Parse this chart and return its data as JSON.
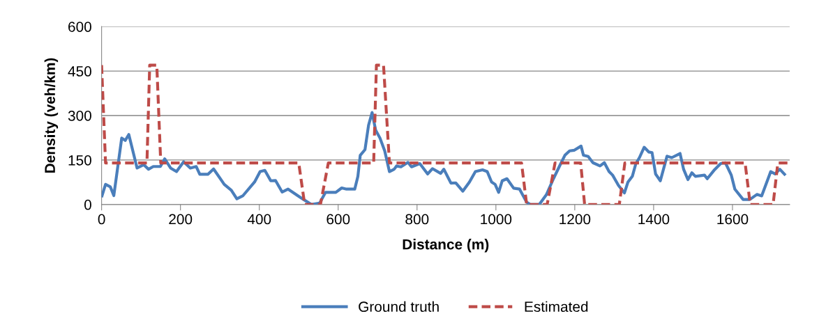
{
  "chart_data": {
    "type": "line",
    "xlabel": "Distance (m)",
    "ylabel": "Density (veh/km)",
    "xlim": [
      0,
      1745
    ],
    "xticks": [
      0,
      200,
      400,
      600,
      800,
      1000,
      1200,
      1400,
      1600
    ],
    "ylim": [
      0,
      600
    ],
    "yticks": [
      0,
      150,
      300,
      450,
      600
    ],
    "grid": "y",
    "legend": "bottom",
    "series": [
      {
        "name": "Ground truth",
        "color": "#4a7ebb",
        "line_style": "solid",
        "x": [
          1,
          10,
          22,
          31,
          51,
          60,
          69,
          90,
          107,
          119,
          131,
          149,
          160,
          175,
          190,
          208,
          225,
          240,
          249,
          270,
          284,
          311,
          329,
          343,
          358,
          388,
          402,
          414,
          429,
          441,
          458,
          473,
          503,
          532,
          553,
          568,
          594,
          609,
          621,
          642,
          650,
          656,
          668,
          677,
          686,
          695,
          706,
          718,
          730,
          742,
          748,
          759,
          777,
          786,
          807,
          827,
          839,
          860,
          868,
          886,
          898,
          916,
          933,
          948,
          966,
          978,
          989,
          998,
          1007,
          1016,
          1028,
          1045,
          1060,
          1078,
          1087,
          1110,
          1128,
          1146,
          1163,
          1175,
          1187,
          1199,
          1216,
          1222,
          1234,
          1246,
          1264,
          1275,
          1287,
          1296,
          1311,
          1326,
          1335,
          1346,
          1355,
          1364,
          1376,
          1388,
          1396,
          1405,
          1417,
          1434,
          1446,
          1467,
          1476,
          1487,
          1497,
          1506,
          1529,
          1536,
          1553,
          1570,
          1582,
          1597,
          1606,
          1627,
          1644,
          1662,
          1674,
          1697,
          1708,
          1720,
          1732
        ],
        "values": [
          29,
          68,
          60,
          30,
          224,
          216,
          236,
          123,
          134,
          119,
          128,
          128,
          154,
          123,
          111,
          144,
          123,
          128,
          102,
          102,
          120,
          68,
          48,
          19,
          29,
          76,
          111,
          115,
          80,
          81,
          42,
          52,
          25,
          0,
          5,
          41,
          41,
          56,
          52,
          52,
          95,
          166,
          185,
          267,
          310,
          251,
          224,
          181,
          111,
          119,
          130,
          127,
          142,
          127,
          138,
          103,
          121,
          105,
          119,
          72,
          73,
          45,
          76,
          111,
          117,
          111,
          76,
          68,
          41,
          80,
          87,
          55,
          52,
          8,
          0,
          0,
          33,
          87,
          134,
          166,
          181,
          183,
          197,
          166,
          162,
          141,
          130,
          141,
          111,
          99,
          64,
          39,
          76,
          95,
          138,
          158,
          193,
          177,
          175,
          103,
          80,
          163,
          158,
          172,
          119,
          84,
          107,
          95,
          99,
          87,
          115,
          138,
          141,
          99,
          52,
          17,
          17,
          34,
          29,
          111,
          103,
          119,
          102
        ]
      },
      {
        "name": "Estimated",
        "color": "#be4b48",
        "line_style": "dashed",
        "x": [
          0,
          10,
          115,
          122,
          140,
          150,
          500,
          515,
          555,
          575,
          690,
          697,
          715,
          730,
          1065,
          1078,
          1130,
          1150,
          1215,
          1225,
          1313,
          1327,
          1632,
          1645,
          1703,
          1715,
          1745
        ],
        "values": [
          470,
          140,
          140,
          470,
          470,
          140,
          140,
          0,
          0,
          140,
          140,
          470,
          470,
          140,
          140,
          0,
          0,
          140,
          140,
          0,
          0,
          140,
          140,
          0,
          0,
          140,
          140
        ]
      }
    ]
  }
}
